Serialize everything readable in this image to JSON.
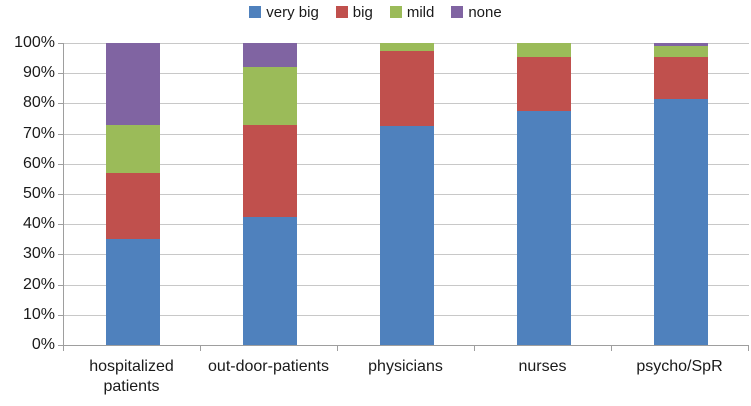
{
  "chart_data": {
    "type": "bar",
    "stacked": true,
    "percent": true,
    "title": "",
    "xlabel": "",
    "ylabel": "",
    "categories": [
      "hospitalized patients",
      "out-door-patients",
      "physicians",
      "nurses",
      "psycho/SpR"
    ],
    "series": [
      {
        "name": "very big",
        "color": "#4F81BD",
        "values": [
          35.0,
          42.5,
          72.5,
          77.5,
          81.5
        ]
      },
      {
        "name": "big",
        "color": "#C0504D",
        "values": [
          22.0,
          30.5,
          25.0,
          18.0,
          14.0
        ]
      },
      {
        "name": "mild",
        "color": "#9BBB59",
        "values": [
          16.0,
          19.0,
          2.5,
          4.5,
          3.5
        ]
      },
      {
        "name": "none",
        "color": "#8064A2",
        "values": [
          27.0,
          8.0,
          0.0,
          0.0,
          1.0
        ]
      }
    ],
    "ylim": [
      0,
      100
    ],
    "yticks": [
      "0%",
      "10%",
      "20%",
      "30%",
      "40%",
      "50%",
      "60%",
      "70%",
      "80%",
      "90%",
      "100%"
    ],
    "legend_position": "top",
    "grid": true
  },
  "style_colors": {
    "gridline": "#c8c8c8",
    "axis": "#9e9e9e",
    "text": "#1a1a1a",
    "background": "#ffffff"
  }
}
